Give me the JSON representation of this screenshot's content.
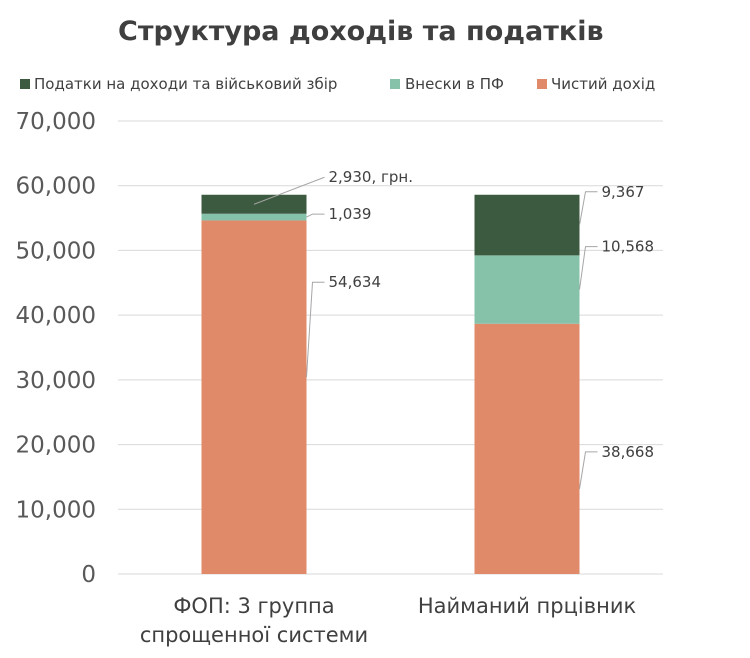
{
  "chart_data": {
    "type": "bar",
    "stacked": true,
    "title": "Структура доходів та податків",
    "categories": [
      "ФОП: 3 группа спрощенної системи",
      "Найманий прцівник"
    ],
    "category_lines": [
      [
        "ФОП: 3 группа",
        "спрощенної системи"
      ],
      [
        "Найманий прцівник"
      ]
    ],
    "series": [
      {
        "name": "Чистий дохід",
        "color": "#e08a6a",
        "values": [
          54634,
          38668
        ],
        "labels": [
          "54,634",
          "38,668"
        ]
      },
      {
        "name": "Внески в ПФ",
        "color": "#86c1a9",
        "values": [
          1039,
          10568
        ],
        "labels": [
          "1,039",
          "10,568"
        ]
      },
      {
        "name": "Податки на доходи та військовий збір",
        "color": "#3c5a3f",
        "values": [
          2930,
          9367
        ],
        "labels": [
          "2,930, грн.",
          "9,367"
        ]
      }
    ],
    "legend_order": [
      "Податки на доходи та військовий збір",
      "Внески в ПФ",
      "Чистий дохід"
    ],
    "ylim": [
      0,
      70000
    ],
    "yticks": [
      0,
      10000,
      20000,
      30000,
      40000,
      50000,
      60000,
      70000
    ],
    "ytick_labels": [
      "0",
      "10,000",
      "20,000",
      "30,000",
      "40,000",
      "50,000",
      "60,000",
      "70,000"
    ],
    "grid": true,
    "legend_position": "top"
  }
}
